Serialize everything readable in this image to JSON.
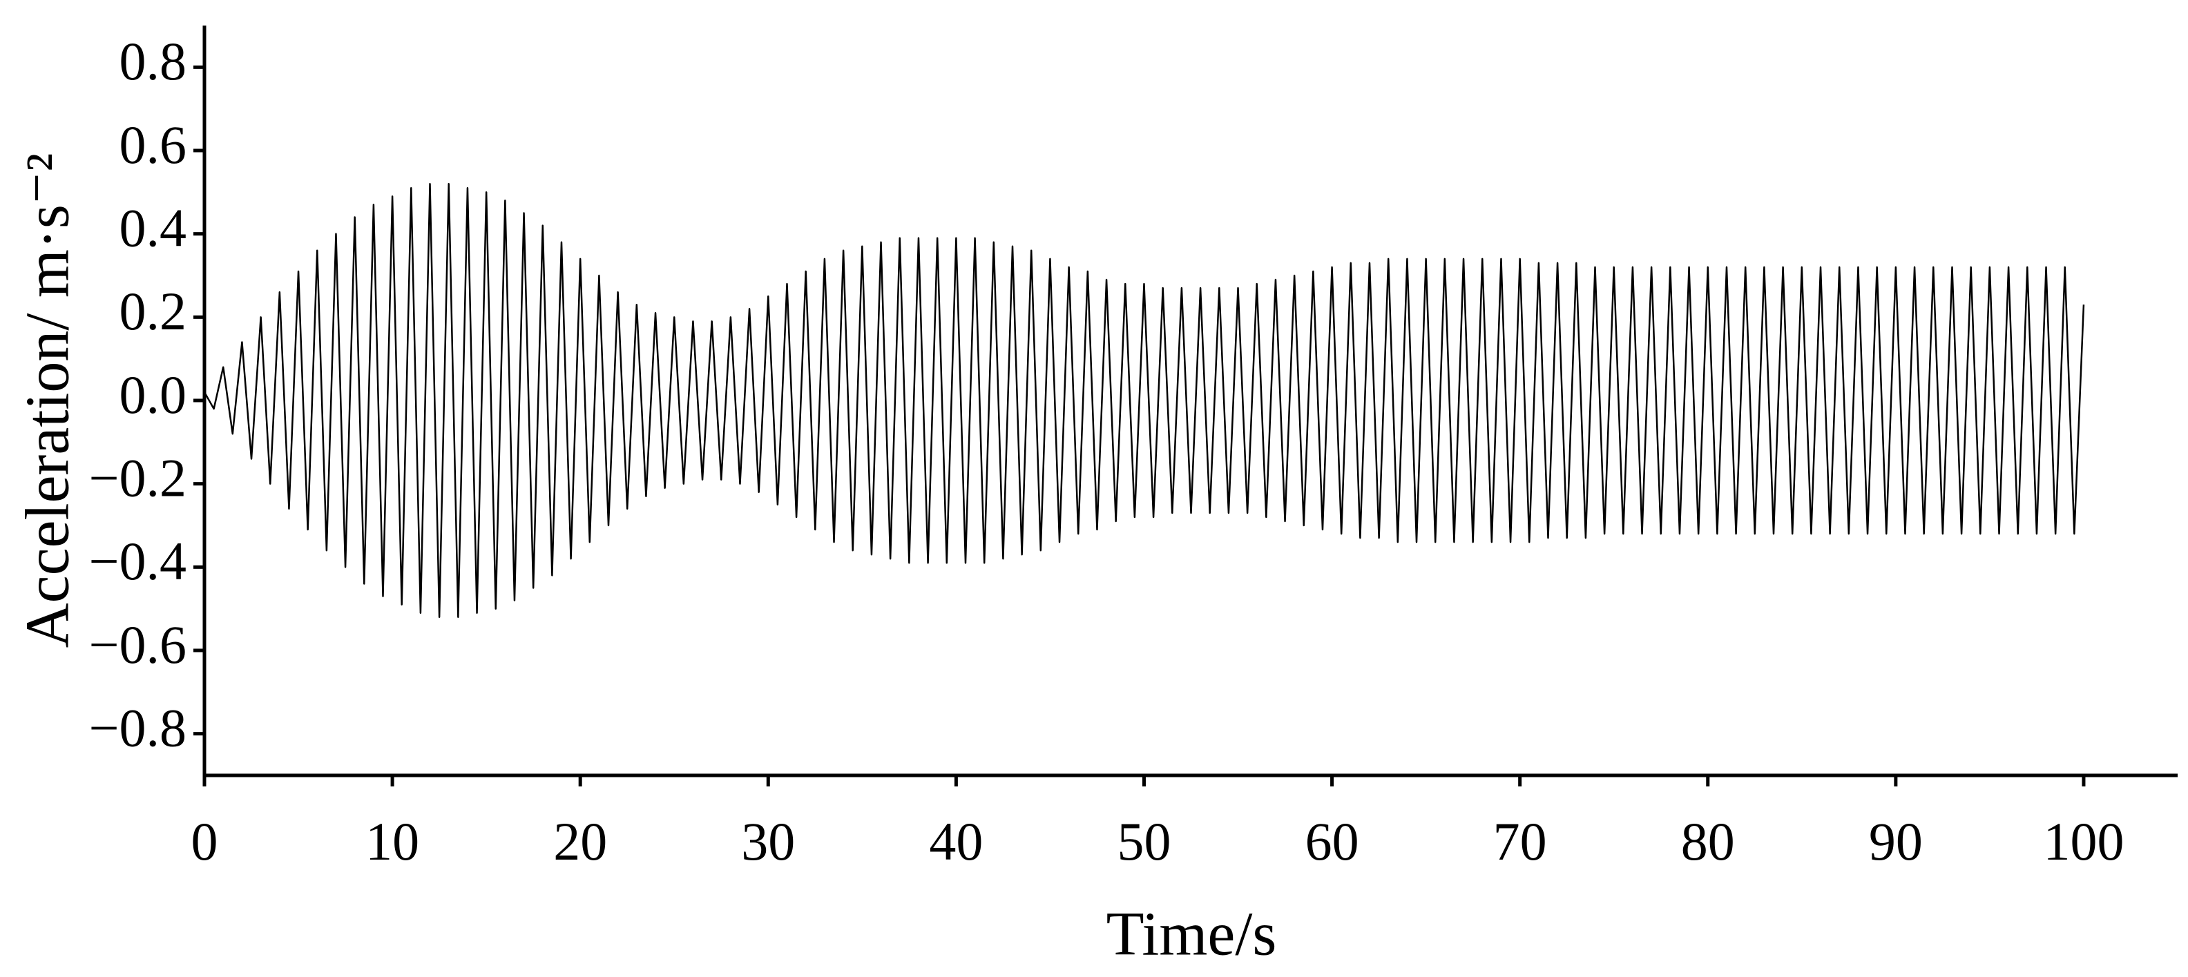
{
  "chart_data": {
    "type": "line",
    "x_label": "Time/s",
    "y_label": "Acceleration/ m·s⁻²",
    "xlim": [
      0,
      105
    ],
    "xticks": [
      0,
      10,
      20,
      30,
      40,
      50,
      60,
      70,
      80,
      90,
      100
    ],
    "ylim": [
      -0.9,
      0.9
    ],
    "yticks": [
      {
        "value": -0.8,
        "label": "−0.8"
      },
      {
        "value": -0.6,
        "label": "−0.6"
      },
      {
        "value": -0.4,
        "label": "−0.4"
      },
      {
        "value": -0.2,
        "label": "−0.2"
      },
      {
        "value": 0,
        "label": "0.0"
      },
      0.2,
      0.4,
      0.6,
      0.8
    ],
    "grid": false,
    "color": "#000000",
    "x": [
      0,
      0.5,
      1,
      1.5,
      2,
      2.5,
      3,
      3.5,
      4,
      4.5,
      5,
      5.5,
      6,
      6.5,
      7,
      7.5,
      8,
      8.5,
      9,
      9.5,
      10,
      10.5,
      11,
      11.5,
      12,
      12.5,
      13,
      13.5,
      14,
      14.5,
      15,
      15.5,
      16,
      16.5,
      17,
      17.5,
      18,
      18.5,
      19,
      19.5,
      20,
      20.5,
      21,
      21.5,
      22,
      22.5,
      23,
      23.5,
      24,
      24.5,
      25,
      25.5,
      26,
      26.5,
      27,
      27.5,
      28,
      28.5,
      29,
      29.5,
      30,
      30.5,
      31,
      31.5,
      32,
      32.5,
      33,
      33.5,
      34,
      34.5,
      35,
      35.5,
      36,
      36.5,
      37,
      37.5,
      38,
      38.5,
      39,
      39.5,
      40,
      40.5,
      41,
      41.5,
      42,
      42.5,
      43,
      43.5,
      44,
      44.5,
      45,
      45.5,
      46,
      46.5,
      47,
      47.5,
      48,
      48.5,
      49,
      49.5,
      50,
      50.5,
      51,
      51.5,
      52,
      52.5,
      53,
      53.5,
      54,
      54.5,
      55,
      55.5,
      56,
      56.5,
      57,
      57.5,
      58,
      58.5,
      59,
      59.5,
      60,
      60.5,
      61,
      61.5,
      62,
      62.5,
      63,
      63.5,
      64,
      64.5,
      65,
      65.5,
      66,
      66.5,
      67,
      67.5,
      68,
      68.5,
      69,
      69.5,
      70,
      70.5,
      71,
      71.5,
      72,
      72.5,
      73,
      73.5,
      74,
      74.5,
      75,
      75.5,
      76,
      76.5,
      77,
      77.5,
      78,
      78.5,
      79,
      79.5,
      80,
      80.5,
      81,
      81.5,
      82,
      82.5,
      83,
      83.5,
      84,
      84.5,
      85,
      85.5,
      86,
      86.5,
      87,
      87.5,
      88,
      88.5,
      89,
      89.5,
      90,
      90.5,
      91,
      91.5,
      92,
      92.5,
      93,
      93.5,
      94,
      94.5,
      95,
      95.5,
      96,
      96.5,
      97,
      97.5,
      98,
      98.5,
      99,
      99.5,
      100
    ],
    "values": [
      0.02,
      -0.02,
      0.08,
      -0.08,
      0.14,
      -0.14,
      0.2,
      -0.2,
      0.26,
      -0.26,
      0.31,
      -0.31,
      0.36,
      -0.36,
      0.4,
      -0.4,
      0.44,
      -0.44,
      0.47,
      -0.47,
      0.49,
      -0.49,
      0.51,
      -0.51,
      0.52,
      -0.52,
      0.52,
      -0.52,
      0.51,
      -0.51,
      0.5,
      -0.5,
      0.48,
      -0.48,
      0.45,
      -0.45,
      0.42,
      -0.42,
      0.38,
      -0.38,
      0.34,
      -0.34,
      0.3,
      -0.3,
      0.26,
      -0.26,
      0.23,
      -0.23,
      0.21,
      -0.21,
      0.2,
      -0.2,
      0.19,
      -0.19,
      0.19,
      -0.19,
      0.2,
      -0.2,
      0.22,
      -0.22,
      0.25,
      -0.25,
      0.28,
      -0.28,
      0.31,
      -0.31,
      0.34,
      -0.34,
      0.36,
      -0.36,
      0.37,
      -0.37,
      0.38,
      -0.38,
      0.39,
      -0.39,
      0.39,
      -0.39,
      0.39,
      -0.39,
      0.39,
      -0.39,
      0.39,
      -0.39,
      0.38,
      -0.38,
      0.37,
      -0.37,
      0.36,
      -0.36,
      0.34,
      -0.34,
      0.32,
      -0.32,
      0.31,
      -0.31,
      0.29,
      -0.29,
      0.28,
      -0.28,
      0.28,
      -0.28,
      0.27,
      -0.27,
      0.27,
      -0.27,
      0.27,
      -0.27,
      0.27,
      -0.27,
      0.27,
      -0.27,
      0.28,
      -0.28,
      0.29,
      -0.29,
      0.3,
      -0.3,
      0.31,
      -0.31,
      0.32,
      -0.32,
      0.33,
      -0.33,
      0.33,
      -0.33,
      0.34,
      -0.34,
      0.34,
      -0.34,
      0.34,
      -0.34,
      0.34,
      -0.34,
      0.34,
      -0.34,
      0.34,
      -0.34,
      0.34,
      -0.34,
      0.34,
      -0.34,
      0.33,
      -0.33,
      0.33,
      -0.33,
      0.33,
      -0.33,
      0.32,
      -0.32,
      0.32,
      -0.32,
      0.32,
      -0.32,
      0.32,
      -0.32,
      0.32,
      -0.32,
      0.32,
      -0.32,
      0.32,
      -0.32,
      0.32,
      -0.32,
      0.32,
      -0.32,
      0.32,
      -0.32,
      0.32,
      -0.32,
      0.32,
      -0.32,
      0.32,
      -0.32,
      0.32,
      -0.32,
      0.32,
      -0.32,
      0.32,
      -0.32,
      0.32,
      -0.32,
      0.32,
      -0.32,
      0.32,
      -0.32,
      0.32,
      -0.32,
      0.32,
      -0.32,
      0.32,
      -0.32,
      0.32,
      -0.32,
      0.32,
      -0.32,
      0.32,
      -0.32,
      0.32,
      -0.32,
      0.23
    ]
  }
}
